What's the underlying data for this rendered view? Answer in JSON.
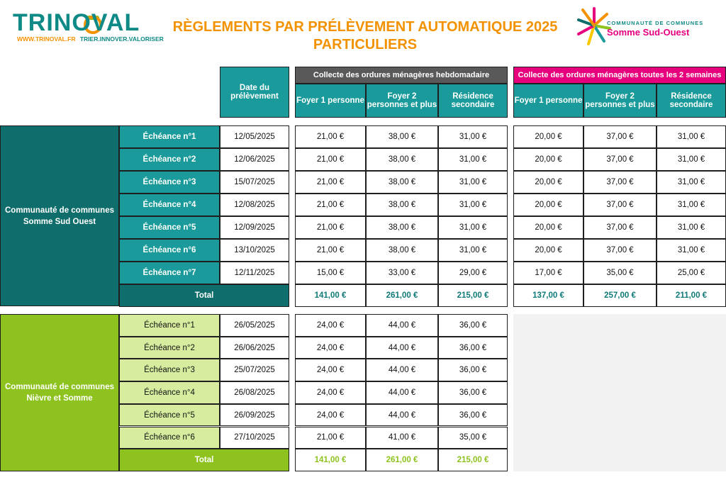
{
  "header": {
    "logo_left": {
      "brand": "TRINOVAL",
      "url": "WWW.TRINOVAL.FR",
      "slogan": "TRIER.INNOVER.VALORISER"
    },
    "title_line1": "RÈGLEMENTS PAR PRÉLÈVEMENT AUTOMATIQUE 2025",
    "title_line2": "PARTICULIERS",
    "logo_right": {
      "line1": "COMMUNAUTÉ DE COMMUNES",
      "line2": "Somme Sud-Ouest"
    }
  },
  "columns": {
    "date_header": "Date du prélèvement",
    "group_weekly": "Collecte des ordures ménagères hebdomadaire",
    "group_biweekly": "Collecte des ordures ménagères toutes les 2 semaines",
    "weekly": [
      "Foyer 1 personne",
      "Foyer 2 personnes et plus",
      "Résidence secondaire"
    ],
    "biweekly": [
      "Foyer 1 personne",
      "Foyer 2 personnes et plus",
      "Résidence secondaire"
    ]
  },
  "section1": {
    "name": "Communauté de communes Somme Sud Ouest",
    "rows": [
      {
        "label": "Échéance n°1",
        "date": "12/05/2025",
        "w": [
          "21,00 €",
          "38,00 €",
          "31,00 €"
        ],
        "b": [
          "20,00 €",
          "37,00 €",
          "31,00 €"
        ]
      },
      {
        "label": "Échéance n°2",
        "date": "12/06/2025",
        "w": [
          "21,00 €",
          "38,00 €",
          "31,00 €"
        ],
        "b": [
          "20,00 €",
          "37,00 €",
          "31,00 €"
        ]
      },
      {
        "label": "Échéance n°3",
        "date": "15/07/2025",
        "w": [
          "21,00 €",
          "38,00 €",
          "31,00 €"
        ],
        "b": [
          "20,00 €",
          "37,00 €",
          "31,00 €"
        ]
      },
      {
        "label": "Échéance n°4",
        "date": "12/08/2025",
        "w": [
          "21,00 €",
          "38,00 €",
          "31,00 €"
        ],
        "b": [
          "20,00 €",
          "37,00 €",
          "31,00 €"
        ]
      },
      {
        "label": "Échéance n°5",
        "date": "12/09/2025",
        "w": [
          "21,00 €",
          "38,00 €",
          "31,00 €"
        ],
        "b": [
          "20,00 €",
          "37,00 €",
          "31,00 €"
        ]
      },
      {
        "label": "Échéance n°6",
        "date": "13/10/2025",
        "w": [
          "21,00 €",
          "38,00 €",
          "31,00 €"
        ],
        "b": [
          "20,00 €",
          "37,00 €",
          "31,00 €"
        ]
      },
      {
        "label": "Échéance n°7",
        "date": "12/11/2025",
        "w": [
          "15,00 €",
          "33,00 €",
          "29,00 €"
        ],
        "b": [
          "17,00 €",
          "35,00 €",
          "25,00 €"
        ]
      }
    ],
    "total_label": "Total",
    "total_w": [
      "141,00 €",
      "261,00 €",
      "215,00 €"
    ],
    "total_b": [
      "137,00 €",
      "257,00 €",
      "211,00 €"
    ]
  },
  "section2": {
    "name": "Communauté de communes Nièvre et Somme",
    "rows": [
      {
        "label": "Échéance n°1",
        "date": "26/05/2025",
        "w": [
          "24,00 €",
          "44,00 €",
          "36,00 €"
        ]
      },
      {
        "label": "Échéance n°2",
        "date": "26/06/2025",
        "w": [
          "24,00 €",
          "44,00 €",
          "36,00 €"
        ]
      },
      {
        "label": "Échéance n°3",
        "date": "25/07/2025",
        "w": [
          "24,00 €",
          "44,00 €",
          "36,00 €"
        ]
      },
      {
        "label": "Échéance n°4",
        "date": "26/08/2025",
        "w": [
          "24,00 €",
          "44,00 €",
          "36,00 €"
        ]
      },
      {
        "label": "Échéance n°5",
        "date": "26/09/2025",
        "w": [
          "24,00 €",
          "44,00 €",
          "36,00 €"
        ]
      },
      {
        "label": "Échéance n°6",
        "date": "27/10/2025",
        "w": [
          "21,00 €",
          "41,00 €",
          "35,00 €"
        ]
      }
    ],
    "total_label": "Total",
    "total_w": [
      "141,00 €",
      "261,00 €",
      "215,00 €"
    ]
  },
  "colors": {
    "teal": "#1a9a9a",
    "dark_teal": "#0f6e6c",
    "pink": "#e6007e",
    "green": "#8dc21f",
    "light_green": "#d7ec9f",
    "orange": "#f39200"
  }
}
